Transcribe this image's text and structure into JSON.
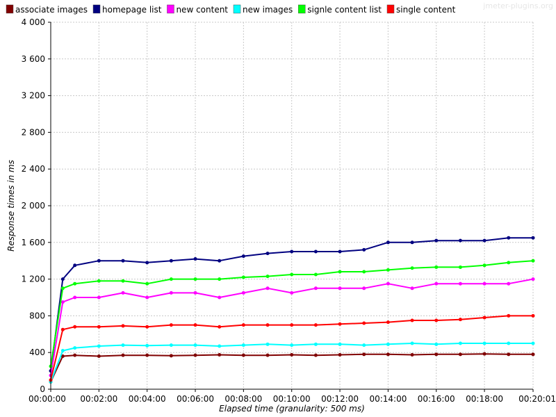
{
  "chart_data": {
    "type": "line",
    "watermark": "jmeter-plugins.org",
    "xlabel": "Elapsed time (granularity: 500 ms)",
    "ylabel": "Response times in ms",
    "xlim_seconds": [
      0,
      1201
    ],
    "ylim": [
      0,
      4000
    ],
    "y_ticks": [
      0,
      400,
      800,
      1200,
      1600,
      2000,
      2400,
      2800,
      3200,
      3600,
      4000
    ],
    "y_tick_labels": [
      "0",
      "400",
      "800",
      "1 200",
      "1 600",
      "2 000",
      "2 400",
      "2 800",
      "3 200",
      "3 600",
      "4 000"
    ],
    "x_ticks_seconds": [
      0,
      120,
      240,
      360,
      480,
      600,
      720,
      840,
      960,
      1080,
      1201
    ],
    "x_tick_labels": [
      "00:00:00",
      "00:02:00",
      "00:04:00",
      "00:06:00",
      "00:08:00",
      "00:10:00",
      "00:12:00",
      "00:14:00",
      "00:16:00",
      "00:18:00",
      "00:20:01"
    ],
    "grid": true,
    "legend_position": "top",
    "x_unit": "seconds since test start",
    "series": [
      {
        "name": "associate images",
        "color": "#800000",
        "x": [
          0,
          30,
          60,
          120,
          180,
          240,
          300,
          360,
          420,
          480,
          540,
          600,
          660,
          720,
          780,
          840,
          900,
          960,
          1020,
          1080,
          1140,
          1201
        ],
        "values": [
          80,
          360,
          370,
          360,
          370,
          370,
          365,
          370,
          375,
          370,
          370,
          375,
          370,
          375,
          380,
          380,
          375,
          380,
          380,
          385,
          380,
          380
        ]
      },
      {
        "name": "homepage list",
        "color": "#000080",
        "x": [
          0,
          30,
          60,
          120,
          180,
          240,
          300,
          360,
          420,
          480,
          540,
          600,
          660,
          720,
          780,
          840,
          900,
          960,
          1020,
          1080,
          1140,
          1201
        ],
        "values": [
          200,
          1200,
          1350,
          1400,
          1400,
          1380,
          1400,
          1420,
          1400,
          1450,
          1480,
          1500,
          1500,
          1500,
          1520,
          1600,
          1600,
          1620,
          1620,
          1620,
          1650,
          1650
        ]
      },
      {
        "name": "new content",
        "color": "#ff00ff",
        "x": [
          0,
          30,
          60,
          120,
          180,
          240,
          300,
          360,
          420,
          480,
          540,
          600,
          660,
          720,
          780,
          840,
          900,
          960,
          1020,
          1080,
          1140,
          1201
        ],
        "values": [
          150,
          950,
          1000,
          1000,
          1050,
          1000,
          1050,
          1050,
          1000,
          1050,
          1100,
          1050,
          1100,
          1100,
          1100,
          1150,
          1100,
          1150,
          1150,
          1150,
          1150,
          1200
        ]
      },
      {
        "name": "new images",
        "color": "#00ffff",
        "x": [
          0,
          30,
          60,
          120,
          180,
          240,
          300,
          360,
          420,
          480,
          540,
          600,
          660,
          720,
          780,
          840,
          900,
          960,
          1020,
          1080,
          1140,
          1201
        ],
        "values": [
          80,
          420,
          450,
          470,
          480,
          475,
          480,
          480,
          470,
          480,
          490,
          480,
          490,
          490,
          480,
          490,
          500,
          490,
          500,
          500,
          500,
          500
        ]
      },
      {
        "name": "signle content list",
        "color": "#00ff00",
        "x": [
          0,
          30,
          60,
          120,
          180,
          240,
          300,
          360,
          420,
          480,
          540,
          600,
          660,
          720,
          780,
          840,
          900,
          960,
          1020,
          1080,
          1140,
          1201
        ],
        "values": [
          250,
          1100,
          1150,
          1180,
          1180,
          1150,
          1200,
          1200,
          1200,
          1220,
          1230,
          1250,
          1250,
          1280,
          1280,
          1300,
          1320,
          1330,
          1330,
          1350,
          1380,
          1400
        ]
      },
      {
        "name": "single content",
        "color": "#ff0000",
        "x": [
          0,
          30,
          60,
          120,
          180,
          240,
          300,
          360,
          420,
          480,
          540,
          600,
          660,
          720,
          780,
          840,
          900,
          960,
          1020,
          1080,
          1140,
          1201
        ],
        "values": [
          100,
          650,
          680,
          680,
          690,
          680,
          700,
          700,
          680,
          700,
          700,
          700,
          700,
          710,
          720,
          730,
          750,
          750,
          760,
          780,
          800,
          800
        ]
      }
    ]
  }
}
